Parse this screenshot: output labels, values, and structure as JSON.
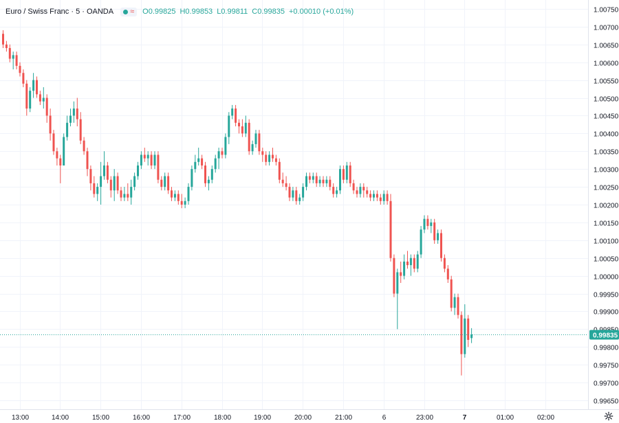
{
  "header": {
    "title": "Euro / Swiss Franc · 5 · OANDA",
    "open": "O0.99825",
    "high": "H0.99853",
    "low": "L0.99811",
    "close": "C0.99835",
    "change": "+0.00010 (+0.01%)"
  },
  "colors": {
    "up": "#26a69a",
    "down": "#ef5350",
    "grid": "#f0f3fa",
    "text": "#131722",
    "price_tag": "#26a69a"
  },
  "icons": {
    "settings": "gear-icon",
    "status": "market-open-icon",
    "wave": "wave-icon"
  },
  "chart_data": {
    "type": "candlestick",
    "title": "Euro / Swiss Franc · 5 · OANDA",
    "interval": "5 min",
    "ylim": [
      0.99625,
      1.00775
    ],
    "y_ticks": [
      "1.00750",
      "1.00700",
      "1.00650",
      "1.00600",
      "1.00550",
      "1.00500",
      "1.00450",
      "1.00400",
      "1.00350",
      "1.00300",
      "1.00250",
      "1.00200",
      "1.00150",
      "1.00100",
      "1.00050",
      "1.00000",
      "0.99950",
      "0.99900",
      "0.99850",
      "0.99800",
      "0.99750",
      "0.99700",
      "0.99650"
    ],
    "x_ticks": [
      {
        "label": "13:00",
        "index": 5,
        "bold": false
      },
      {
        "label": "14:00",
        "index": 17,
        "bold": false
      },
      {
        "label": "15:00",
        "index": 29,
        "bold": false
      },
      {
        "label": "16:00",
        "index": 41,
        "bold": false
      },
      {
        "label": "17:00",
        "index": 53,
        "bold": false
      },
      {
        "label": "18:00",
        "index": 65,
        "bold": false
      },
      {
        "label": "19:00",
        "index": 77,
        "bold": false
      },
      {
        "label": "20:00",
        "index": 89,
        "bold": false
      },
      {
        "label": "21:00",
        "index": 101,
        "bold": false
      },
      {
        "label": "6",
        "index": 113,
        "bold": false
      },
      {
        "label": "23:00",
        "index": 125,
        "bold": false
      },
      {
        "label": "7",
        "index": 137,
        "bold": true
      },
      {
        "label": "01:00",
        "index": 149,
        "bold": false
      },
      {
        "label": "02:00",
        "index": 161,
        "bold": false
      }
    ],
    "last_price": 0.99835,
    "last_price_label": "0.99835",
    "candles": [
      [
        1.0068,
        1.0069,
        1.0064,
        1.0065
      ],
      [
        1.0065,
        1.0066,
        1.0063,
        1.0064
      ],
      [
        1.0064,
        1.0065,
        1.006,
        1.0061
      ],
      [
        1.0061,
        1.0063,
        1.0058,
        1.0062
      ],
      [
        1.0062,
        1.0063,
        1.0058,
        1.0059
      ],
      [
        1.0059,
        1.006,
        1.0056,
        1.0057
      ],
      [
        1.0057,
        1.0058,
        1.0053,
        1.0054
      ],
      [
        1.0054,
        1.0055,
        1.0045,
        1.0047
      ],
      [
        1.0047,
        1.0053,
        1.0046,
        1.0052
      ],
      [
        1.0052,
        1.0057,
        1.005,
        1.0055
      ],
      [
        1.0055,
        1.0056,
        1.005,
        1.0051
      ],
      [
        1.0051,
        1.0052,
        1.0048,
        1.0049
      ],
      [
        1.0049,
        1.0053,
        1.0047,
        1.005
      ],
      [
        1.005,
        1.0051,
        1.0043,
        1.0045
      ],
      [
        1.0045,
        1.0047,
        1.0038,
        1.004
      ],
      [
        1.004,
        1.0041,
        1.0034,
        1.0035
      ],
      [
        1.0035,
        1.0036,
        1.0031,
        1.0033
      ],
      [
        1.0033,
        1.0034,
        1.0026,
        1.0031
      ],
      [
        1.0031,
        1.004,
        1.0031,
        1.0039
      ],
      [
        1.0039,
        1.0045,
        1.0038,
        1.0043
      ],
      [
        1.0043,
        1.0047,
        1.0042,
        1.0045
      ],
      [
        1.0045,
        1.0049,
        1.0043,
        1.0047
      ],
      [
        1.0047,
        1.005,
        1.0042,
        1.0044
      ],
      [
        1.0044,
        1.0046,
        1.0037,
        1.0038
      ],
      [
        1.0038,
        1.0039,
        1.0034,
        1.0035
      ],
      [
        1.0035,
        1.0036,
        1.0028,
        1.003
      ],
      [
        1.003,
        1.0031,
        1.0024,
        1.0026
      ],
      [
        1.0026,
        1.0028,
        1.0022,
        1.0023
      ],
      [
        1.0023,
        1.0026,
        1.0021,
        1.0025
      ],
      [
        1.0025,
        1.0032,
        1.002,
        1.0028
      ],
      [
        1.0028,
        1.0035,
        1.0027,
        1.0031
      ],
      [
        1.0031,
        1.0032,
        1.0026,
        1.0027
      ],
      [
        1.0027,
        1.0028,
        1.0022,
        1.0024
      ],
      [
        1.0024,
        1.003,
        1.0021,
        1.0028
      ],
      [
        1.0028,
        1.0029,
        1.0023,
        1.0024
      ],
      [
        1.0024,
        1.0025,
        1.0021,
        1.0022
      ],
      [
        1.0022,
        1.0025,
        1.0021,
        1.0023
      ],
      [
        1.0023,
        1.0026,
        1.0021,
        1.0022
      ],
      [
        1.0022,
        1.0027,
        1.002,
        1.0025
      ],
      [
        1.0025,
        1.0029,
        1.0024,
        1.0028
      ],
      [
        1.0028,
        1.0032,
        1.0027,
        1.0031
      ],
      [
        1.0031,
        1.0035,
        1.003,
        1.0034
      ],
      [
        1.0034,
        1.0036,
        1.0032,
        1.0033
      ],
      [
        1.0033,
        1.0035,
        1.0031,
        1.0034
      ],
      [
        1.0034,
        1.0035,
        1.003,
        1.0031
      ],
      [
        1.0031,
        1.0035,
        1.003,
        1.0034
      ],
      [
        1.0034,
        1.0035,
        1.0026,
        1.0027
      ],
      [
        1.0027,
        1.0028,
        1.0024,
        1.0025
      ],
      [
        1.0025,
        1.0029,
        1.0024,
        1.0028
      ],
      [
        1.0028,
        1.0029,
        1.0023,
        1.0024
      ],
      [
        1.0024,
        1.0025,
        1.0021,
        1.0022
      ],
      [
        1.0022,
        1.0024,
        1.0021,
        1.0023
      ],
      [
        1.0023,
        1.0024,
        1.002,
        1.0021
      ],
      [
        1.0021,
        1.0023,
        1.0019,
        1.002
      ],
      [
        1.002,
        1.0022,
        1.0019,
        1.0021
      ],
      [
        1.0021,
        1.0026,
        1.002,
        1.0025
      ],
      [
        1.0025,
        1.0031,
        1.0024,
        1.003
      ],
      [
        1.003,
        1.0034,
        1.0029,
        1.0032
      ],
      [
        1.0032,
        1.0036,
        1.0031,
        1.0033
      ],
      [
        1.0033,
        1.0034,
        1.003,
        1.0031
      ],
      [
        1.0031,
        1.0032,
        1.0025,
        1.0026
      ],
      [
        1.0026,
        1.0028,
        1.0024,
        1.0027
      ],
      [
        1.0027,
        1.0031,
        1.0026,
        1.003
      ],
      [
        1.003,
        1.0034,
        1.0029,
        1.0033
      ],
      [
        1.0033,
        1.0036,
        1.003,
        1.0035
      ],
      [
        1.0035,
        1.0036,
        1.0033,
        1.0034
      ],
      [
        1.0034,
        1.004,
        1.0033,
        1.0039
      ],
      [
        1.0039,
        1.0046,
        1.0037,
        1.0045
      ],
      [
        1.0045,
        1.0048,
        1.0044,
        1.0047
      ],
      [
        1.0047,
        1.0048,
        1.0042,
        1.0043
      ],
      [
        1.0043,
        1.0044,
        1.004,
        1.0042
      ],
      [
        1.0042,
        1.0044,
        1.0039,
        1.004
      ],
      [
        1.004,
        1.0045,
        1.0039,
        1.0043
      ],
      [
        1.0043,
        1.0044,
        1.0034,
        1.0035
      ],
      [
        1.0035,
        1.0038,
        1.0034,
        1.0037
      ],
      [
        1.0037,
        1.0041,
        1.0036,
        1.004
      ],
      [
        1.004,
        1.0041,
        1.0034,
        1.0035
      ],
      [
        1.0035,
        1.0036,
        1.0032,
        1.0034
      ],
      [
        1.0034,
        1.0035,
        1.0031,
        1.0032
      ],
      [
        1.0032,
        1.0035,
        1.0031,
        1.0034
      ],
      [
        1.0034,
        1.0036,
        1.0032,
        1.0033
      ],
      [
        1.0033,
        1.0034,
        1.0031,
        1.0032
      ],
      [
        1.0032,
        1.0033,
        1.0026,
        1.0027
      ],
      [
        1.0027,
        1.0029,
        1.0025,
        1.0026
      ],
      [
        1.0026,
        1.0028,
        1.0024,
        1.0025
      ],
      [
        1.0025,
        1.0026,
        1.0021,
        1.0022
      ],
      [
        1.0022,
        1.0025,
        1.0021,
        1.0024
      ],
      [
        1.0024,
        1.0025,
        1.002,
        1.0021
      ],
      [
        1.0021,
        1.0023,
        1.002,
        1.0022
      ],
      [
        1.0022,
        1.0026,
        1.0021,
        1.0025
      ],
      [
        1.0025,
        1.0029,
        1.0024,
        1.0028
      ],
      [
        1.0028,
        1.0029,
        1.0026,
        1.0027
      ],
      [
        1.0027,
        1.0029,
        1.0026,
        1.0028
      ],
      [
        1.0028,
        1.0029,
        1.0025,
        1.0026
      ],
      [
        1.0026,
        1.0028,
        1.0025,
        1.0027
      ],
      [
        1.0027,
        1.0028,
        1.0025,
        1.0026
      ],
      [
        1.0026,
        1.0028,
        1.0025,
        1.0027
      ],
      [
        1.0027,
        1.0028,
        1.0024,
        1.0025
      ],
      [
        1.0025,
        1.0026,
        1.0022,
        1.0023
      ],
      [
        1.0023,
        1.0025,
        1.0022,
        1.0024
      ],
      [
        1.0024,
        1.0031,
        1.0023,
        1.003
      ],
      [
        1.003,
        1.0031,
        1.0026,
        1.0027
      ],
      [
        1.0027,
        1.0032,
        1.0026,
        1.0031
      ],
      [
        1.0031,
        1.0032,
        1.0025,
        1.0026
      ],
      [
        1.0026,
        1.0027,
        1.0023,
        1.0024
      ],
      [
        1.0024,
        1.0025,
        1.0022,
        1.0023
      ],
      [
        1.0023,
        1.0026,
        1.0022,
        1.0025
      ],
      [
        1.0025,
        1.0026,
        1.0022,
        1.0024
      ],
      [
        1.0024,
        1.0025,
        1.0022,
        1.0023
      ],
      [
        1.0023,
        1.0024,
        1.0021,
        1.0022
      ],
      [
        1.0022,
        1.0024,
        1.0021,
        1.0023
      ],
      [
        1.0023,
        1.0024,
        1.0021,
        1.0022
      ],
      [
        1.0022,
        1.0023,
        1.002,
        1.0021
      ],
      [
        1.0021,
        1.0024,
        1.002,
        1.0023
      ],
      [
        1.0023,
        1.0024,
        1.002,
        1.0021
      ],
      [
        1.0021,
        1.0023,
        1.0004,
        1.0005
      ],
      [
        1.0005,
        1.0006,
        0.9994,
        0.9995
      ],
      [
        0.9995,
        1.0002,
        0.9985,
        1.0001
      ],
      [
        1.0001,
        1.0004,
        0.9998,
        1.0
      ],
      [
        1.0,
        1.0006,
        0.9999,
        1.0004
      ],
      [
        1.0004,
        1.0007,
        1.0002,
        1.0003
      ],
      [
        1.0003,
        1.0006,
        1.0,
        1.0005
      ],
      [
        1.0005,
        1.0006,
        1.0001,
        1.0002
      ],
      [
        1.0002,
        1.0007,
        1.0001,
        1.0006
      ],
      [
        1.0006,
        1.0014,
        1.0005,
        1.0013
      ],
      [
        1.0013,
        1.0017,
        1.0012,
        1.0016
      ],
      [
        1.0016,
        1.0017,
        1.0013,
        1.0014
      ],
      [
        1.0014,
        1.0016,
        1.0012,
        1.0015
      ],
      [
        1.0015,
        1.0016,
        1.0009,
        1.001
      ],
      [
        1.001,
        1.0013,
        1.0009,
        1.0012
      ],
      [
        1.0012,
        1.0013,
        1.0004,
        1.0005
      ],
      [
        1.0005,
        1.0006,
        1.0001,
        1.0002
      ],
      [
        1.0002,
        1.0003,
        0.9998,
        0.9999
      ],
      [
        0.9999,
        1.0,
        0.999,
        0.9991
      ],
      [
        0.9991,
        0.9995,
        0.9989,
        0.9994
      ],
      [
        0.9994,
        0.9995,
        0.9988,
        0.9989
      ],
      [
        0.9989,
        0.999,
        0.9972,
        0.9978
      ],
      [
        0.9978,
        0.9992,
        0.9977,
        0.9988
      ],
      [
        0.9988,
        0.9989,
        0.998,
        0.9982
      ],
      [
        0.99825,
        0.99853,
        0.99811,
        0.99835
      ]
    ]
  }
}
